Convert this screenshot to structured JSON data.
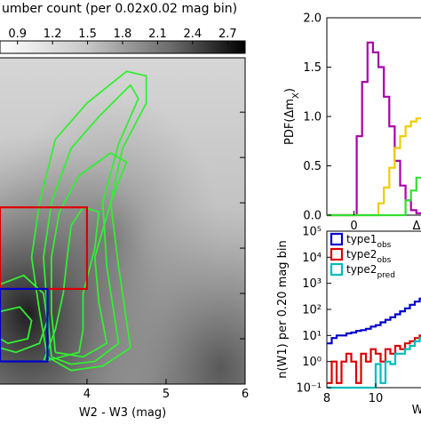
{
  "colors": {
    "contour": "#33ee33",
    "box_red": "#dd0000",
    "box_blue": "#0000cc",
    "pdf_series": [
      "#aa00aa",
      "#eecc00",
      "#33dd33"
    ],
    "hist_series": [
      "#0000cc",
      "#dd0000",
      "#00bbbb"
    ]
  },
  "chart_data": [
    {
      "type": "heatmap",
      "colorbar": {
        "title": "umber count (per 0.02x0.02 mag bin)",
        "ticks": [
          "0.9",
          "1.2",
          "1.5",
          "1.8",
          "2.1",
          "2.4",
          "2.7"
        ],
        "range": [
          0.75,
          2.85
        ],
        "colormap": "white-to-black"
      },
      "xlabel": "W2 - W3 (mag)",
      "xticks": [
        "4",
        "5",
        "6"
      ],
      "xlim": [
        2.9,
        6.0
      ],
      "ylim": [
        0.0,
        3.6
      ],
      "contours": [
        [
          [
            3.5,
            0.3
          ],
          [
            3.4,
            0.8
          ],
          [
            3.3,
            1.4
          ],
          [
            3.4,
            2.0
          ],
          [
            3.6,
            2.7
          ],
          [
            4.0,
            3.1
          ],
          [
            4.5,
            3.45
          ],
          [
            4.75,
            3.4
          ],
          [
            4.75,
            3.1
          ],
          [
            4.45,
            2.6
          ],
          [
            4.3,
            2.0
          ],
          [
            4.4,
            1.3
          ],
          [
            4.55,
            0.4
          ],
          [
            4.2,
            0.2
          ],
          [
            3.8,
            0.15
          ],
          [
            3.5,
            0.3
          ]
        ],
        [
          [
            3.55,
            0.3
          ],
          [
            3.5,
            0.8
          ],
          [
            3.45,
            1.4
          ],
          [
            3.55,
            2.0
          ],
          [
            3.8,
            2.6
          ],
          [
            4.15,
            2.95
          ],
          [
            4.55,
            3.3
          ],
          [
            4.65,
            3.15
          ],
          [
            4.4,
            2.65
          ],
          [
            4.2,
            2.0
          ],
          [
            4.25,
            1.3
          ],
          [
            4.4,
            0.45
          ],
          [
            4.1,
            0.25
          ],
          [
            3.8,
            0.22
          ],
          [
            3.55,
            0.3
          ]
        ],
        [
          [
            3.6,
            0.35
          ],
          [
            3.55,
            0.8
          ],
          [
            3.55,
            1.4
          ],
          [
            3.65,
            1.9
          ],
          [
            3.9,
            2.3
          ],
          [
            4.3,
            2.55
          ],
          [
            4.5,
            2.45
          ],
          [
            4.3,
            2.0
          ],
          [
            4.1,
            1.4
          ],
          [
            4.15,
            0.9
          ],
          [
            4.25,
            0.45
          ],
          [
            3.95,
            0.3
          ],
          [
            3.6,
            0.35
          ]
        ],
        [
          [
            3.45,
            0.25
          ],
          [
            3.6,
            0.6
          ],
          [
            3.7,
            1.0
          ],
          [
            3.75,
            1.4
          ],
          [
            3.8,
            1.75
          ],
          [
            3.95,
            1.95
          ],
          [
            4.15,
            1.9
          ],
          [
            4.1,
            1.5
          ],
          [
            3.95,
            1.0
          ],
          [
            3.95,
            0.6
          ],
          [
            3.9,
            0.35
          ],
          [
            3.45,
            0.25
          ]
        ],
        [
          [
            2.9,
            1.1
          ],
          [
            3.2,
            1.2
          ],
          [
            3.45,
            1.0
          ],
          [
            3.5,
            0.7
          ],
          [
            3.4,
            0.45
          ],
          [
            3.1,
            0.35
          ],
          [
            2.9,
            0.4
          ]
        ],
        [
          [
            2.9,
            0.8
          ],
          [
            3.15,
            0.85
          ],
          [
            3.3,
            0.7
          ],
          [
            3.25,
            0.5
          ],
          [
            3.0,
            0.45
          ],
          [
            2.9,
            0.5
          ]
        ]
      ],
      "boxes": [
        {
          "x": [
            2.9,
            4.0
          ],
          "y": [
            1.05,
            1.95
          ]
        },
        {
          "x": [
            2.9,
            3.5
          ],
          "y": [
            0.25,
            1.05
          ]
        }
      ]
    },
    {
      "type": "line",
      "ylabel": "PDF(Δm_X)",
      "xtick_labels": [
        "0",
        "Δ"
      ],
      "xlim": [
        -0.5,
        1.3
      ],
      "ylim": [
        0.0,
        2.0
      ],
      "yticks": [
        "0.0",
        "0.5",
        "1.0",
        "1.5",
        "2.0"
      ],
      "series": [
        {
          "x": [
            -0.5,
            -0.05,
            0.05,
            0.15,
            0.25,
            0.35,
            0.45,
            0.55,
            0.65,
            0.75,
            0.85,
            0.95,
            1.05,
            1.15,
            1.3
          ],
          "values": [
            0.0,
            0.0,
            0.8,
            1.35,
            1.75,
            1.65,
            1.5,
            1.2,
            0.9,
            0.55,
            0.3,
            0.15,
            0.05,
            0.02,
            0.0
          ]
        },
        {
          "x": [
            -0.5,
            0.35,
            0.45,
            0.55,
            0.65,
            0.75,
            0.85,
            0.95,
            1.05,
            1.15,
            1.3
          ],
          "values": [
            0.0,
            0.0,
            0.12,
            0.28,
            0.48,
            0.68,
            0.8,
            0.9,
            0.95,
            0.98,
            1.0
          ]
        },
        {
          "x": [
            -0.5,
            0.85,
            0.95,
            1.05,
            1.15,
            1.3
          ],
          "values": [
            0.0,
            0.0,
            0.15,
            0.25,
            0.38,
            0.5
          ]
        }
      ]
    },
    {
      "type": "bar",
      "ylabel": "n(W1) per 0.20 mag bin",
      "xlabel": "W",
      "xticks": [
        "8",
        "10"
      ],
      "xlim": [
        8.0,
        12.0
      ],
      "ylim": [
        0.1,
        100000
      ],
      "yscale": "log",
      "yticks": [
        "10⁻¹",
        "10⁰",
        "10¹",
        "10²",
        "10³",
        "10⁴",
        "10⁵"
      ],
      "series": [
        {
          "name": "type1",
          "sub": "obs",
          "x": [
            8.0,
            8.2,
            8.4,
            8.6,
            8.8,
            9.0,
            9.2,
            9.4,
            9.6,
            9.8,
            10.0,
            10.2,
            10.4,
            10.6,
            10.8,
            11.0,
            11.2,
            11.4,
            11.6,
            11.8
          ],
          "values": [
            5,
            8,
            10,
            10,
            12,
            13,
            15,
            16,
            18,
            22,
            25,
            32,
            40,
            50,
            65,
            85,
            110,
            150,
            200,
            260
          ]
        },
        {
          "name": "type2",
          "sub": "obs",
          "x": [
            8.0,
            8.2,
            8.4,
            8.6,
            8.8,
            9.0,
            9.2,
            9.4,
            9.6,
            9.8,
            10.0,
            10.2,
            10.4,
            10.6,
            10.8,
            11.0,
            11.2,
            11.4,
            11.6,
            11.8
          ],
          "values": [
            0.15,
            1,
            0.15,
            1,
            2,
            1,
            0.15,
            2,
            1,
            3,
            2,
            1,
            3,
            2,
            4,
            3,
            5,
            6,
            8,
            10
          ]
        },
        {
          "name": "type2",
          "sub": "pred",
          "x": [
            8.0,
            8.2,
            8.4,
            8.6,
            8.8,
            9.0,
            9.2,
            9.4,
            9.6,
            9.8,
            10.0,
            10.2,
            10.4,
            10.6,
            10.8,
            11.0,
            11.2,
            11.4,
            11.6,
            11.8
          ],
          "values": [
            0.1,
            0.1,
            0.1,
            0.1,
            0.1,
            0.1,
            0.1,
            0.1,
            0.1,
            0.1,
            0.8,
            0.15,
            1,
            0.8,
            2,
            2,
            3,
            4,
            6,
            8
          ]
        }
      ]
    }
  ]
}
